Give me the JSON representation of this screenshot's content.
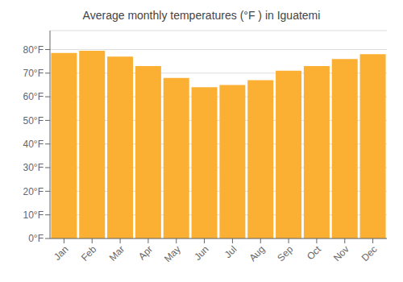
{
  "chart_data": {
    "type": "bar",
    "title": "Average monthly temperatures (°F ) in Iguatemi",
    "categories": [
      "Jan",
      "Feb",
      "Mar",
      "Apr",
      "May",
      "Jun",
      "Jul",
      "Aug",
      "Sep",
      "Oct",
      "Nov",
      "Dec"
    ],
    "values": [
      78.5,
      79.5,
      77.0,
      73.0,
      68.0,
      64.0,
      65.0,
      67.0,
      71.0,
      73.0,
      76.0,
      78.0
    ],
    "color": "#FBB034",
    "ylim": [
      0,
      88
    ],
    "yticks": [
      {
        "value": 0,
        "label": "0°F"
      },
      {
        "value": 10,
        "label": "10°F"
      },
      {
        "value": 20,
        "label": "20°F"
      },
      {
        "value": 30,
        "label": "30°F"
      },
      {
        "value": 40,
        "label": "40°F"
      },
      {
        "value": 50,
        "label": "50°F"
      },
      {
        "value": 60,
        "label": "60°F"
      },
      {
        "value": 70,
        "label": "70°F"
      },
      {
        "value": 80,
        "label": "80°F"
      }
    ],
    "grid": true
  }
}
